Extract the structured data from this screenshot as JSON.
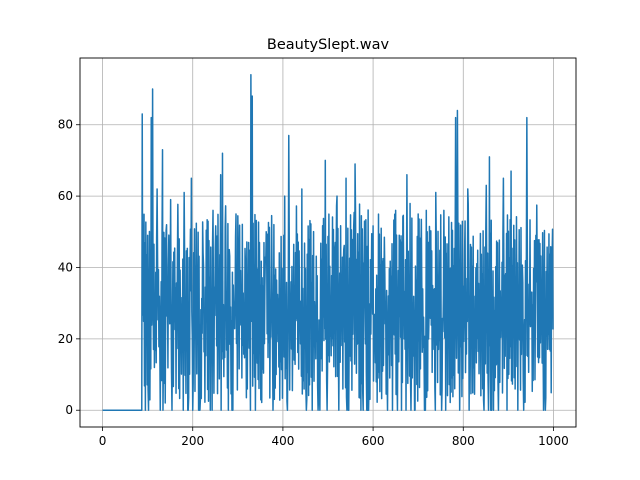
{
  "chart_data": {
    "type": "line",
    "title": "BeautySlept.wav",
    "xlabel": "",
    "ylabel": "",
    "xlim": [
      -50,
      1050
    ],
    "ylim": [
      -4.7,
      98.7
    ],
    "grid": true,
    "line_color": "#1f77b4",
    "x_ticks": [
      0,
      200,
      400,
      600,
      800,
      1000
    ],
    "y_ticks": [
      0,
      20,
      40,
      60,
      80
    ],
    "x_tick_labels": [
      "0",
      "200",
      "400",
      "600",
      "800",
      "1000"
    ],
    "y_tick_labels": [
      "0",
      "20",
      "40",
      "60",
      "80"
    ],
    "series": [
      {
        "name": "",
        "x_start": 0,
        "x_step": 1,
        "silence_until": 88,
        "y_max": 94,
        "peaks": [
          [
            88,
            83
          ],
          [
            100,
            49
          ],
          [
            108,
            82
          ],
          [
            111,
            90
          ],
          [
            121,
            62
          ],
          [
            133,
            73
          ],
          [
            151,
            59
          ],
          [
            181,
            61
          ],
          [
            197,
            65
          ],
          [
            223,
            44
          ],
          [
            245,
            56
          ],
          [
            262,
            66
          ],
          [
            266,
            72
          ],
          [
            281,
            45
          ],
          [
            296,
            55
          ],
          [
            329,
            94
          ],
          [
            332,
            88
          ],
          [
            348,
            47
          ],
          [
            363,
            50
          ],
          [
            380,
            52
          ],
          [
            404,
            60
          ],
          [
            413,
            77
          ],
          [
            442,
            62
          ],
          [
            494,
            70
          ],
          [
            520,
            60
          ],
          [
            540,
            65
          ],
          [
            560,
            69
          ],
          [
            581,
            53
          ],
          [
            618,
            51
          ],
          [
            650,
            56
          ],
          [
            675,
            66
          ],
          [
            700,
            55
          ],
          [
            718,
            56
          ],
          [
            739,
            61
          ],
          [
            783,
            82
          ],
          [
            787,
            84
          ],
          [
            810,
            62
          ],
          [
            851,
            63
          ],
          [
            858,
            71
          ],
          [
            889,
            65
          ],
          [
            906,
            67
          ],
          [
            941,
            82
          ],
          [
            961,
            49
          ],
          [
            997,
            43
          ]
        ]
      }
    ]
  }
}
